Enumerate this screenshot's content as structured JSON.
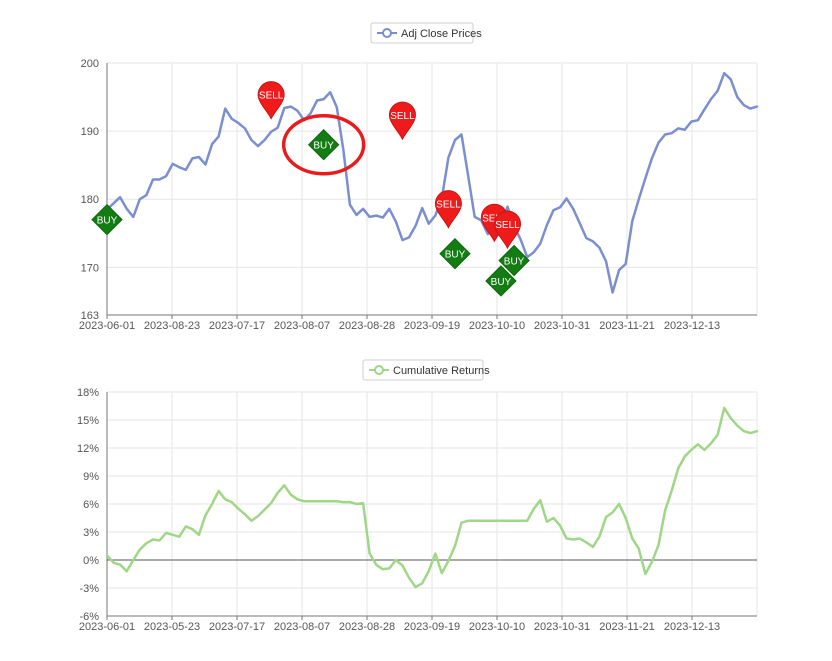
{
  "chart_data": [
    {
      "type": "line",
      "legend": "Adj Close Prices",
      "legend_position": "top-center",
      "color": "#7b8fd0",
      "grid": true,
      "ylim": [
        163,
        200
      ],
      "yticks": [
        163,
        170,
        180,
        190,
        200
      ],
      "xticks": [
        "2023-06-01",
        "2023-08-23",
        "2023-07-17",
        "2023-08-07",
        "2023-08-28",
        "2023-09-19",
        "2023-10-10",
        "2023-10-31",
        "2023-11-21",
        "2023-12-13"
      ],
      "x_count": 100,
      "values": [
        178.5,
        179.4,
        180.3,
        178.6,
        177.4,
        180.0,
        180.6,
        182.9,
        182.9,
        183.4,
        185.2,
        184.7,
        184.3,
        186.0,
        186.2,
        185.1,
        188.1,
        189.2,
        193.3,
        191.8,
        191.2,
        190.4,
        188.7,
        187.8,
        188.7,
        189.9,
        190.5,
        193.4,
        193.6,
        193.0,
        191.6,
        192.6,
        194.5,
        194.7,
        195.7,
        193.5,
        187.2,
        179.2,
        177.7,
        178.6,
        177.4,
        177.6,
        177.3,
        178.6,
        176.7,
        174.0,
        174.4,
        176.1,
        178.7,
        176.4,
        177.6,
        180.1,
        186.1,
        188.7,
        189.5,
        183.5,
        177.4,
        176.9,
        174.9,
        175.7,
        175.3,
        178.9,
        176.0,
        174.1,
        171.5,
        172.2,
        173.5,
        176.2,
        178.4,
        178.8,
        180.1,
        178.6,
        176.5,
        174.3,
        173.8,
        172.9,
        170.9,
        166.3,
        169.6,
        170.5,
        176.8,
        180.0,
        183.1,
        186.0,
        188.3,
        189.5,
        189.7,
        190.4,
        190.2,
        191.4,
        191.6,
        193.2,
        194.7,
        195.9,
        198.5,
        197.6,
        195.0,
        193.8,
        193.3,
        193.6
      ],
      "markers": [
        {
          "type": "BUY",
          "x": 0,
          "y": 177
        },
        {
          "type": "SELL",
          "x": 25,
          "y": 193
        },
        {
          "type": "BUY",
          "x": 33,
          "y": 188
        },
        {
          "type": "SELL",
          "x": 45,
          "y": 190
        },
        {
          "type": "SELL",
          "x": 52,
          "y": 177
        },
        {
          "type": "BUY",
          "x": 53,
          "y": 172
        },
        {
          "type": "SELL",
          "x": 59,
          "y": 175
        },
        {
          "type": "BUY",
          "x": 60,
          "y": 168
        },
        {
          "type": "SELL",
          "x": 61,
          "y": 174
        },
        {
          "type": "BUY",
          "x": 62,
          "y": 171
        }
      ],
      "highlight": {
        "x": 33,
        "y": 188
      }
    },
    {
      "type": "line",
      "legend": "Cumulative Returns",
      "legend_position": "top-center",
      "color": "#9fd787",
      "grid": true,
      "ylim": [
        -6,
        18
      ],
      "yticks": [
        -6,
        -3,
        0,
        3,
        6,
        9,
        12,
        15,
        18
      ],
      "ytick_labels": [
        "-6%",
        "-3%",
        "0%",
        "3%",
        "6%",
        "9%",
        "12%",
        "15%",
        "18%"
      ],
      "xticks": [
        "2023-06-01",
        "2023-05-23",
        "2023-07-17",
        "2023-08-07",
        "2023-08-28",
        "2023-09-19",
        "2023-10-10",
        "2023-10-31",
        "2023-11-21",
        "2023-12-13"
      ],
      "x_count": 100,
      "values": [
        0.5,
        -0.3,
        -0.5,
        -1.2,
        0.0,
        1.1,
        1.8,
        2.2,
        2.1,
        2.9,
        2.7,
        2.5,
        3.6,
        3.3,
        2.7,
        4.8,
        6.0,
        7.4,
        6.5,
        6.2,
        5.5,
        4.9,
        4.2,
        4.7,
        5.4,
        6.1,
        7.2,
        8.0,
        7.0,
        6.5,
        6.3,
        6.3,
        6.3,
        6.3,
        6.3,
        6.3,
        6.2,
        6.2,
        6.0,
        6.1,
        0.7,
        -0.5,
        -1.0,
        -0.9,
        0.0,
        -0.6,
        -1.9,
        -2.9,
        -2.5,
        -1.2,
        0.7,
        -1.4,
        -0.1,
        1.5,
        4.0,
        4.2,
        4.2,
        4.2,
        4.2,
        4.2,
        4.2,
        4.2,
        4.2,
        4.2,
        4.2,
        5.5,
        6.4,
        4.1,
        4.5,
        3.7,
        2.3,
        2.2,
        2.3,
        1.9,
        1.4,
        2.5,
        4.6,
        5.1,
        6.0,
        4.5,
        2.3,
        1.2,
        -1.5,
        -0.2,
        1.6,
        5.3,
        7.4,
        9.8,
        11.1,
        11.8,
        12.4,
        11.8,
        12.5,
        13.4,
        16.3,
        15.2,
        14.4,
        13.8,
        13.6,
        13.8
      ]
    }
  ]
}
